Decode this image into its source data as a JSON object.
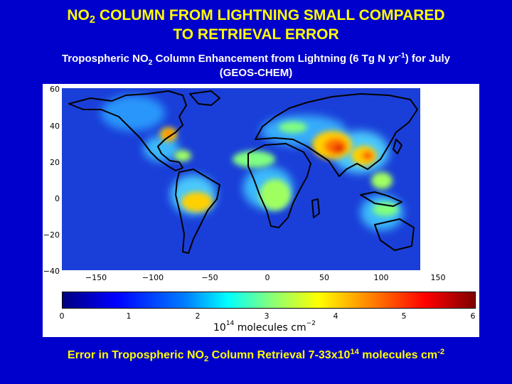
{
  "title": {
    "line1_pre": "NO",
    "line1_sub": "2",
    "line1_post": " COLUMN FROM LIGHTNING SMALL COMPARED",
    "line2": "TO RETRIEVAL ERROR"
  },
  "subtitle": {
    "pre": "Tropospheric NO",
    "sub": "2",
    "mid": " Column Enhancement from Lightning (6 Tg N yr",
    "sup": "-1",
    "post": ") for July",
    "line2": "(GEOS-CHEM)"
  },
  "map": {
    "lat_ticks": [
      "60",
      "40",
      "20",
      "0",
      "−20",
      "−40"
    ],
    "lon_ticks": [
      "−150",
      "−100",
      "−50",
      "0",
      "50",
      "100",
      "150"
    ],
    "background_color": "#1a3fd8",
    "hotspot_colors": [
      "#40c8ff",
      "#a0ff60",
      "#ffd000",
      "#ff7000",
      "#e02000"
    ]
  },
  "colorbar": {
    "ticks": [
      "0",
      "1",
      "2",
      "3",
      "4",
      "5",
      "6"
    ],
    "unit_base": "10",
    "unit_exp": "14",
    "unit_text": " molecules cm",
    "unit_sup": "−2"
  },
  "footer": {
    "pre": "Error in Tropospheric NO",
    "sub": "2",
    "mid": " Column Retrieval 7-33x10",
    "sup1": "14",
    "post": " molecules cm",
    "sup2": "-2"
  }
}
